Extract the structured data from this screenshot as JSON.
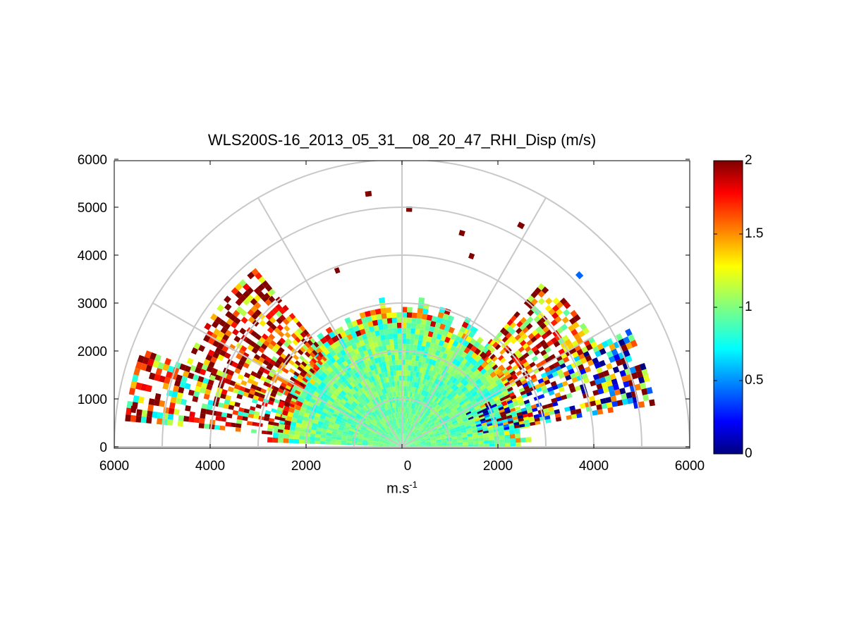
{
  "chart_data": {
    "type": "heatmap",
    "subtype": "polar RHI scan (range-height indicator)",
    "title": "WLS200S-16_2013_05_31__08_20_47_RHI_Disp (m/s)",
    "xlabel": "m.s",
    "xlabel_superscript": "-1",
    "ylabel": "",
    "xlim": [
      -6000,
      6000
    ],
    "ylim": [
      0,
      6000
    ],
    "x_tick_labels": [
      "6000",
      "4000",
      "2000",
      "0",
      "2000",
      "4000",
      "6000"
    ],
    "x_tick_values": [
      -6000,
      -4000,
      -2000,
      0,
      2000,
      4000,
      6000
    ],
    "y_tick_labels": [
      "0",
      "1000",
      "2000",
      "3000",
      "4000",
      "5000",
      "6000"
    ],
    "y_tick_values": [
      0,
      1000,
      2000,
      3000,
      4000,
      5000,
      6000
    ],
    "polar_grid": {
      "ring_radii": [
        1000,
        2000,
        3000,
        4000,
        5000,
        6000
      ],
      "spoke_angles_deg": [
        0,
        30,
        60,
        90,
        120,
        150,
        180
      ]
    },
    "colorbar": {
      "colormap": "jet",
      "range": [
        0,
        2
      ],
      "tick_labels": [
        "0",
        "0.5",
        "1",
        "1.5",
        "2"
      ],
      "tick_values": [
        0,
        0.5,
        1,
        1.5,
        2
      ]
    },
    "data_description": {
      "near_field_value": 0.95,
      "near_field_max_range_m": 2900,
      "sector_regions": [
        {
          "azimuth_deg": [
            10,
            28
          ],
          "range_m": [
            1500,
            5300
          ],
          "typical_value": 0.7,
          "spread": 0.9
        },
        {
          "azimuth_deg": [
            28,
            50
          ],
          "range_m": [
            2500,
            4500
          ],
          "typical_value": 1.5,
          "spread": 0.6
        },
        {
          "azimuth_deg": [
            130,
            160
          ],
          "range_m": [
            2400,
            4800
          ],
          "typical_value": 1.6,
          "spread": 0.6
        },
        {
          "azimuth_deg": [
            160,
            175
          ],
          "range_m": [
            2500,
            5800
          ],
          "typical_value": 1.4,
          "spread": 0.7
        }
      ],
      "isolated_points": [
        {
          "x": -700,
          "y": 5280,
          "value": 2.0
        },
        {
          "x": 150,
          "y": 4960,
          "value": 2.0
        },
        {
          "x": 1250,
          "y": 4460,
          "value": 2.0
        },
        {
          "x": 2480,
          "y": 4620,
          "value": 2.0
        },
        {
          "x": 1450,
          "y": 3980,
          "value": 2.0
        },
        {
          "x": 3700,
          "y": 3580,
          "value": 0.45
        },
        {
          "x": -1350,
          "y": 3680,
          "value": 2.0
        },
        {
          "x": -2820,
          "y": 3140,
          "value": 2.0
        },
        {
          "x": -5600,
          "y": 780,
          "value": 2.0
        }
      ]
    }
  }
}
